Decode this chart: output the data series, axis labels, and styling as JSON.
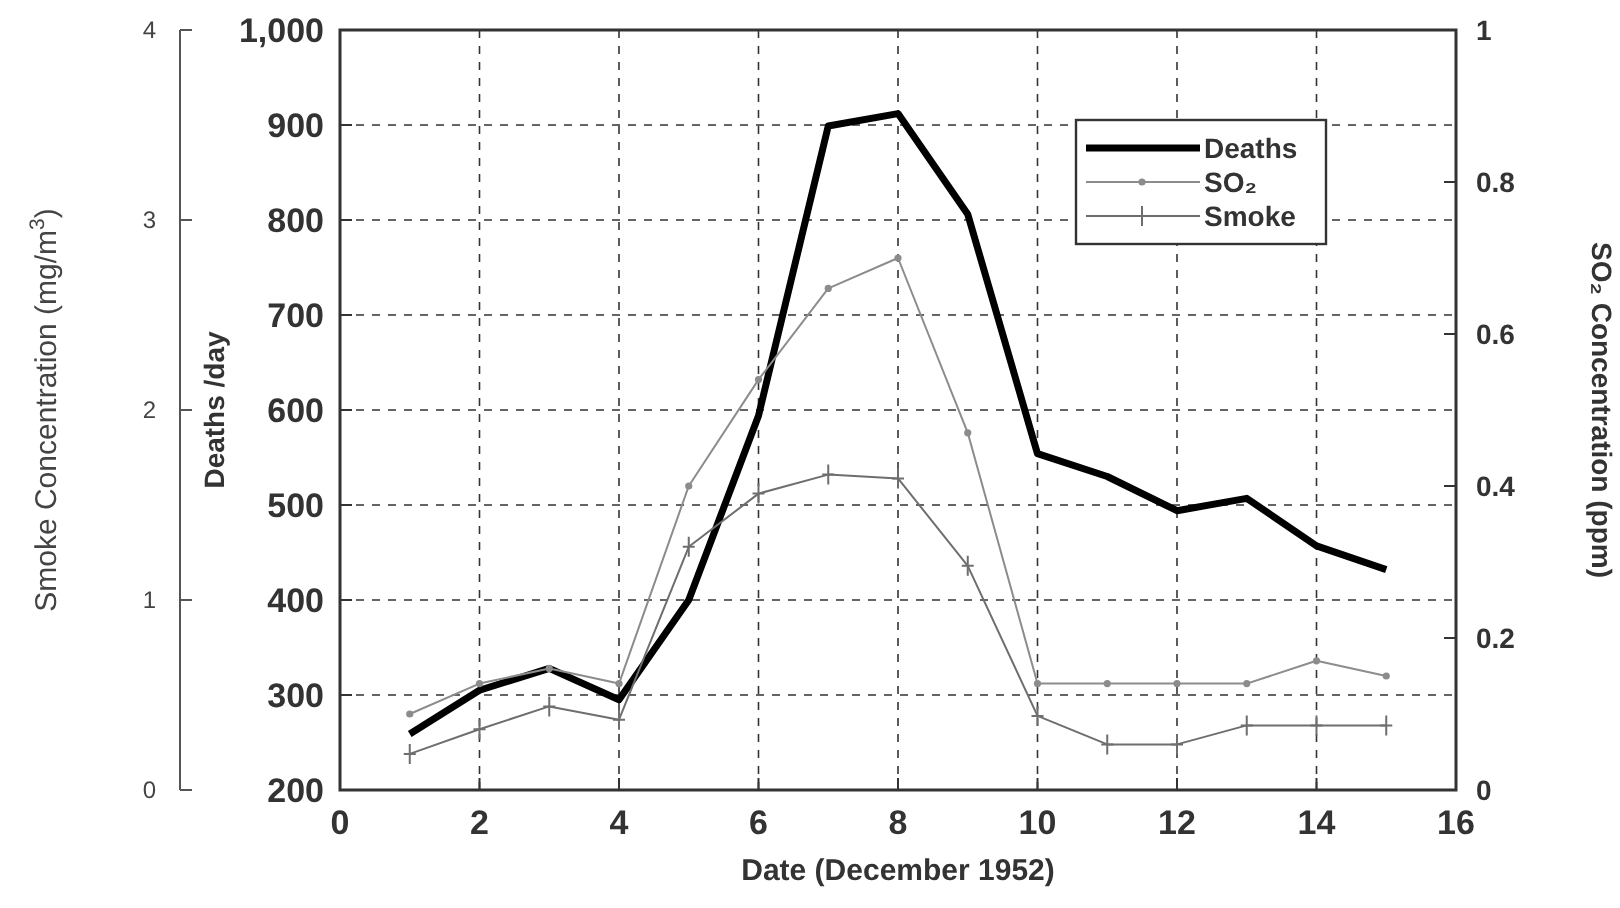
{
  "chart_data": {
    "type": "line",
    "xlabel": "Date (December 1952)",
    "ylabel": "Deaths /day",
    "y2label": "SO₂ Concentration (ppm)",
    "y3label": "Smoke Concentration (mg/m$^{3}$)",
    "x": [
      1,
      2,
      3,
      4,
      5,
      6,
      7,
      8,
      9,
      10,
      11,
      12,
      13,
      14,
      15
    ],
    "xlim": [
      0,
      16
    ],
    "xticks": [
      0,
      2,
      4,
      6,
      8,
      10,
      12,
      14,
      16
    ],
    "ylim": [
      200,
      1000
    ],
    "yticks": [
      200,
      300,
      400,
      500,
      600,
      700,
      800,
      900,
      {
        "value": 1000,
        "label": "1,000"
      }
    ],
    "y2lim": [
      0,
      1
    ],
    "y2ticks": [
      0,
      0.2,
      0.4,
      0.6,
      0.8,
      1
    ],
    "y3lim": [
      0,
      4
    ],
    "y3ticks": [
      0,
      1,
      2,
      3,
      4
    ],
    "grid": true,
    "legend": "top right",
    "line_style": "solid",
    "series": [
      {
        "name": "Deaths",
        "color": "#000000",
        "marker": "none",
        "values": [
          259,
          305,
          328,
          295,
          400,
          594,
          899,
          912,
          806,
          554,
          530,
          494,
          507,
          457,
          432
        ]
      },
      {
        "name": "SO₂",
        "color": "#8c8c8c",
        "marker": "circle",
        "axis": "y2",
        "values": [
          0.1,
          0.14,
          0.16,
          0.14,
          0.4,
          0.54,
          0.66,
          0.7,
          0.47,
          0.14,
          0.14,
          0.14,
          0.14,
          0.17,
          0.15
        ]
      },
      {
        "name": "Smoke",
        "color": "#6e6e6e",
        "marker": "cross",
        "axis": "y3",
        "values": [
          0.19,
          0.32,
          0.44,
          0.37,
          1.28,
          1.56,
          1.66,
          1.64,
          1.18,
          0.39,
          0.24,
          0.24,
          0.34,
          0.34,
          0.34
        ]
      }
    ]
  }
}
